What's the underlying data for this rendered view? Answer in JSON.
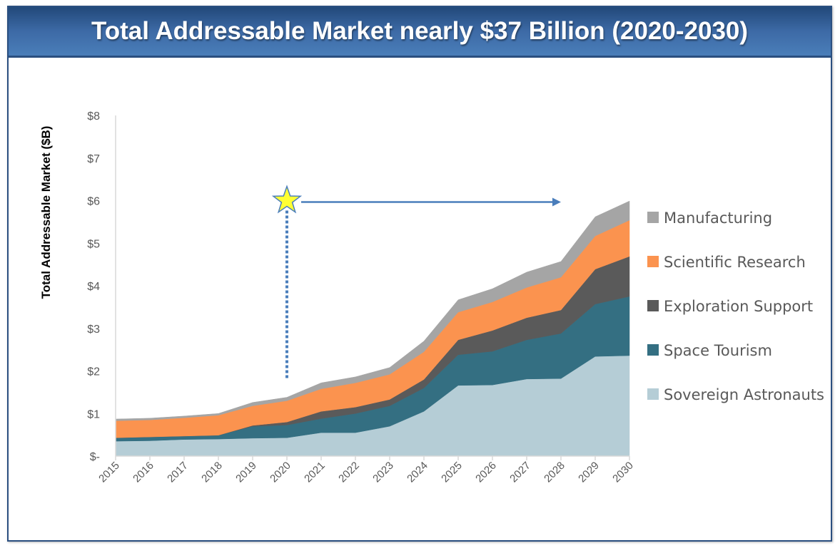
{
  "title": "Total Addressable Market nearly $37 Billion (2020-2030)",
  "chart_data": {
    "type": "area",
    "stacked": true,
    "title": "Total Addressable Market nearly $37 Billion (2020-2030)",
    "xlabel": "",
    "ylabel": "Total Addressable Market  ($B)",
    "ylim": [
      0,
      8
    ],
    "y_ticks": [
      0,
      1,
      2,
      3,
      4,
      5,
      6,
      7,
      8
    ],
    "y_tick_labels": [
      "$-",
      "$1",
      "$2",
      "$3",
      "$4",
      "$5",
      "$6",
      "$7",
      "$8"
    ],
    "categories": [
      "2015",
      "2016",
      "2017",
      "2018",
      "2019",
      "2020",
      "2021",
      "2022",
      "2023",
      "2024",
      "2025",
      "2026",
      "2027",
      "2028",
      "2029",
      "2030"
    ],
    "grid": false,
    "legend_position": "right",
    "series": [
      {
        "name": "Sovereign Astronauts",
        "color": "#b5cdd6",
        "values": [
          0.35,
          0.36,
          0.39,
          0.4,
          0.42,
          0.43,
          0.55,
          0.55,
          0.7,
          1.05,
          1.66,
          1.67,
          1.81,
          1.82,
          2.34,
          2.36
        ]
      },
      {
        "name": "Space Tourism",
        "color": "#346f82",
        "values": [
          0.08,
          0.09,
          0.08,
          0.09,
          0.28,
          0.3,
          0.33,
          0.45,
          0.48,
          0.55,
          0.72,
          0.79,
          0.92,
          1.06,
          1.23,
          1.39
        ]
      },
      {
        "name": "Exploration Support",
        "color": "#5a5a5a",
        "values": [
          0,
          0,
          0,
          0,
          0.02,
          0.07,
          0.17,
          0.15,
          0.15,
          0.2,
          0.35,
          0.49,
          0.52,
          0.55,
          0.82,
          0.94
        ]
      },
      {
        "name": "Scientific Research",
        "color": "#fb934f",
        "values": [
          0.4,
          0.4,
          0.43,
          0.47,
          0.46,
          0.5,
          0.53,
          0.57,
          0.59,
          0.65,
          0.65,
          0.67,
          0.71,
          0.77,
          0.78,
          0.85
        ]
      },
      {
        "name": "Manufacturing",
        "color": "#a5a5a5",
        "values": [
          0.04,
          0.04,
          0.04,
          0.04,
          0.08,
          0.08,
          0.14,
          0.14,
          0.16,
          0.25,
          0.29,
          0.31,
          0.36,
          0.37,
          0.45,
          0.45
        ]
      }
    ],
    "annotations": [
      {
        "type": "star-marker",
        "at_x": "2020",
        "at_y": 6,
        "color": "#ffff33"
      },
      {
        "type": "dotted-line",
        "at_x": "2020",
        "from_y": 6,
        "to_y": 1.8,
        "color": "#4a7ebb"
      },
      {
        "type": "arrow",
        "y": 6,
        "from_x": "2020",
        "to_x": "2028",
        "color": "#4a7ebb"
      }
    ]
  }
}
